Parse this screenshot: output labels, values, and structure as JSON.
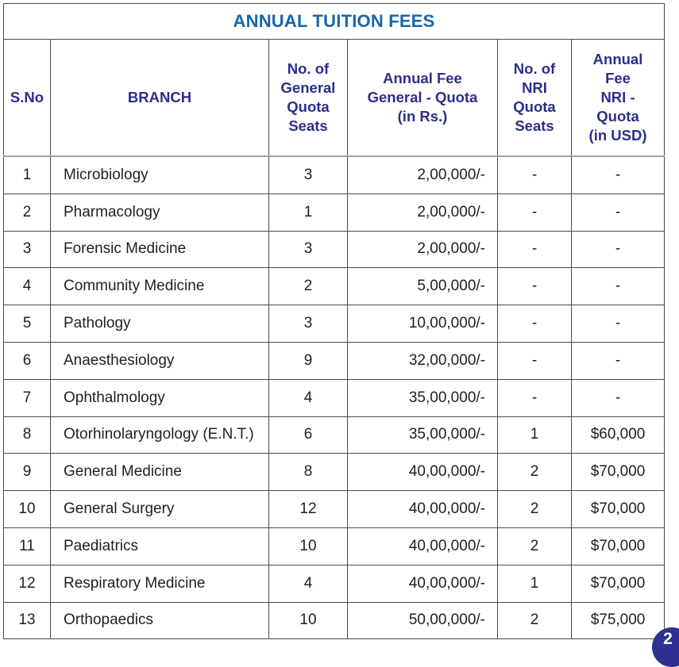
{
  "colors": {
    "title_text": "#1766a8",
    "header_text": "#2c2e8c",
    "badge_background": "#2e3192",
    "grid_line": "#4a4a4c",
    "header_separator": "#a2a2a4"
  },
  "page": {
    "badge_label": "2"
  },
  "table": {
    "title": "ANNUAL TUITION FEES",
    "columns": [
      {
        "key": "sno",
        "label": "S.No",
        "align": "center"
      },
      {
        "key": "branch",
        "label": "BRANCH",
        "align": "left"
      },
      {
        "key": "gen_seats",
        "label": "No. of\nGeneral\nQuota\nSeats",
        "align": "center"
      },
      {
        "key": "gen_fee",
        "label": "Annual Fee\nGeneral - Quota\n(in Rs.)",
        "align": "right"
      },
      {
        "key": "nri_seats",
        "label": "No. of\nNRI\nQuota\nSeats",
        "align": "center"
      },
      {
        "key": "nri_fee",
        "label": "Annual\nFee\nNRI -\nQuota\n(in USD)",
        "align": "center"
      }
    ],
    "rows": [
      {
        "sno": "1",
        "branch": "Microbiology",
        "gen_seats": "3",
        "gen_fee": "2,00,000/-",
        "nri_seats": "-",
        "nri_fee": "-"
      },
      {
        "sno": "2",
        "branch": "Pharmacology",
        "gen_seats": "1",
        "gen_fee": "2,00,000/-",
        "nri_seats": "-",
        "nri_fee": "-"
      },
      {
        "sno": "3",
        "branch": "Forensic Medicine",
        "gen_seats": "3",
        "gen_fee": "2,00,000/-",
        "nri_seats": "-",
        "nri_fee": "-"
      },
      {
        "sno": "4",
        "branch": "Community Medicine",
        "gen_seats": "2",
        "gen_fee": "5,00,000/-",
        "nri_seats": "-",
        "nri_fee": "-"
      },
      {
        "sno": "5",
        "branch": "Pathology",
        "gen_seats": "3",
        "gen_fee": "10,00,000/-",
        "nri_seats": "-",
        "nri_fee": "-"
      },
      {
        "sno": "6",
        "branch": "Anaesthesiology",
        "gen_seats": "9",
        "gen_fee": "32,00,000/-",
        "nri_seats": "-",
        "nri_fee": "-"
      },
      {
        "sno": "7",
        "branch": "Ophthalmology",
        "gen_seats": "4",
        "gen_fee": "35,00,000/-",
        "nri_seats": "-",
        "nri_fee": "-"
      },
      {
        "sno": "8",
        "branch": "Otorhinolaryngology (E.N.T.)",
        "gen_seats": "6",
        "gen_fee": "35,00,000/-",
        "nri_seats": "1",
        "nri_fee": "$60,000"
      },
      {
        "sno": "9",
        "branch": "General Medicine",
        "gen_seats": "8",
        "gen_fee": "40,00,000/-",
        "nri_seats": "2",
        "nri_fee": "$70,000"
      },
      {
        "sno": "10",
        "branch": "General Surgery",
        "gen_seats": "12",
        "gen_fee": "40,00,000/-",
        "nri_seats": "2",
        "nri_fee": "$70,000"
      },
      {
        "sno": "11",
        "branch": "Paediatrics",
        "gen_seats": "10",
        "gen_fee": "40,00,000/-",
        "nri_seats": "2",
        "nri_fee": "$70,000"
      },
      {
        "sno": "12",
        "branch": "Respiratory Medicine",
        "gen_seats": "4",
        "gen_fee": "40,00,000/-",
        "nri_seats": "1",
        "nri_fee": "$70,000"
      },
      {
        "sno": "13",
        "branch": "Orthopaedics",
        "gen_seats": "10",
        "gen_fee": "50,00,000/-",
        "nri_seats": "2",
        "nri_fee": "$75,000"
      }
    ]
  }
}
